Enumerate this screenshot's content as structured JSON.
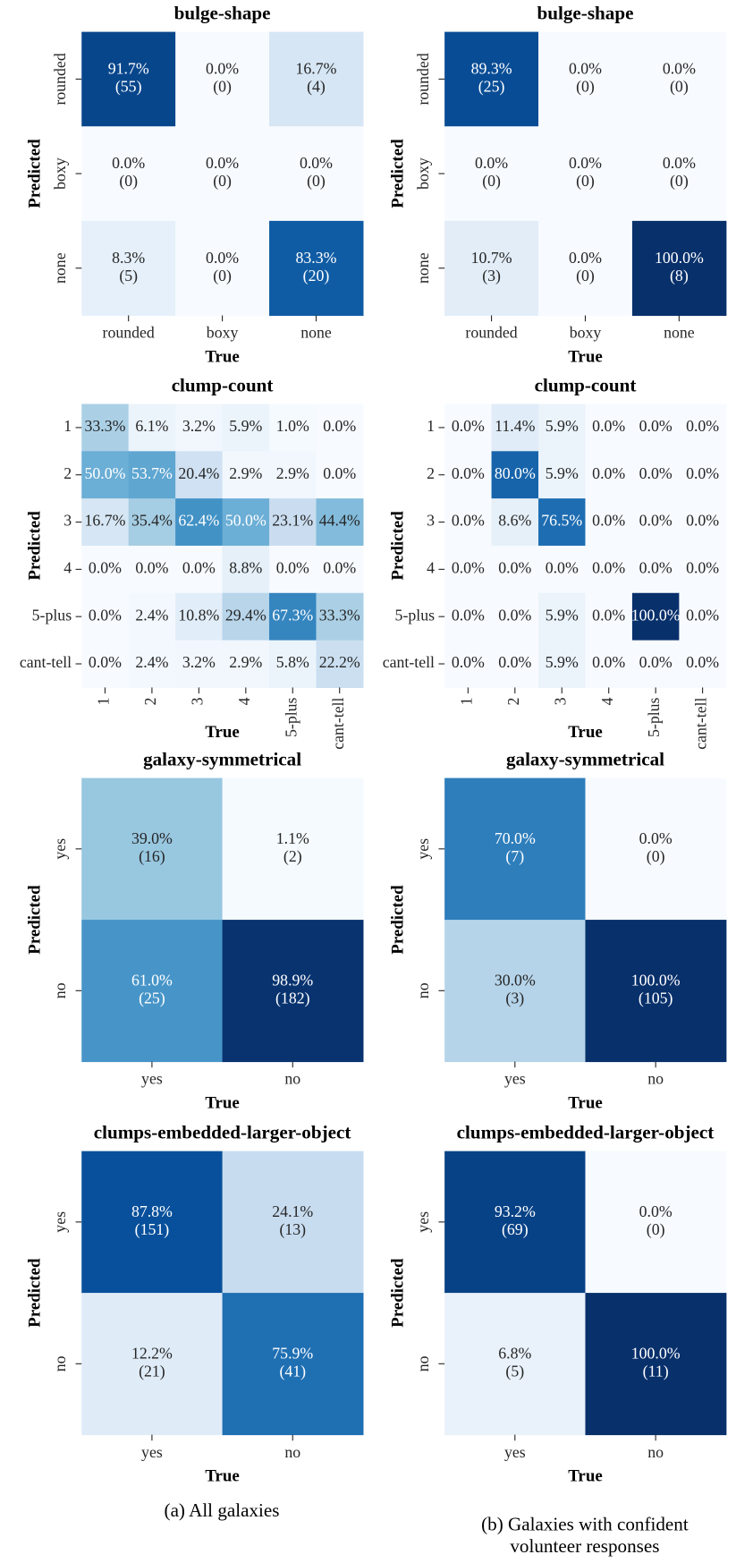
{
  "chart_data": [
    {
      "type": "heatmap",
      "title": "bulge-shape",
      "xlabel": "True",
      "ylabel": "Predicted",
      "x_categories": [
        "rounded",
        "boxy",
        "none"
      ],
      "y_categories": [
        "rounded",
        "boxy",
        "none"
      ],
      "values": [
        [
          91.7,
          0.0,
          16.7
        ],
        [
          0.0,
          0.0,
          0.0
        ],
        [
          8.3,
          0.0,
          83.3
        ]
      ],
      "value_labels": [
        [
          "91.7%",
          "0.0%",
          "16.7%"
        ],
        [
          "0.0%",
          "0.0%",
          "0.0%"
        ],
        [
          "8.3%",
          "0.0%",
          "83.3%"
        ]
      ],
      "count_labels": [
        [
          "(55)",
          "(0)",
          "(4)"
        ],
        [
          "(0)",
          "(0)",
          "(0)"
        ],
        [
          "(5)",
          "(0)",
          "(20)"
        ]
      ],
      "vlim": [
        0,
        100
      ],
      "colormap": [
        "#f7fbff",
        "#deebf7",
        "#c6dbef",
        "#9ecae1",
        "#6baed6",
        "#4292c6",
        "#2171b5",
        "#08519c",
        "#08306b"
      ]
    },
    {
      "type": "heatmap",
      "title": "bulge-shape",
      "xlabel": "True",
      "ylabel": "Predicted",
      "x_categories": [
        "rounded",
        "boxy",
        "none"
      ],
      "y_categories": [
        "rounded",
        "boxy",
        "none"
      ],
      "values": [
        [
          89.3,
          0.0,
          0.0
        ],
        [
          0.0,
          0.0,
          0.0
        ],
        [
          10.7,
          0.0,
          100.0
        ]
      ],
      "value_labels": [
        [
          "89.3%",
          "0.0%",
          "0.0%"
        ],
        [
          "0.0%",
          "0.0%",
          "0.0%"
        ],
        [
          "10.7%",
          "0.0%",
          "100.0%"
        ]
      ],
      "count_labels": [
        [
          "(25)",
          "(0)",
          "(0)"
        ],
        [
          "(0)",
          "(0)",
          "(0)"
        ],
        [
          "(3)",
          "(0)",
          "(8)"
        ]
      ],
      "vlim": [
        0,
        100
      ],
      "colormap": [
        "#f7fbff",
        "#deebf7",
        "#c6dbef",
        "#9ecae1",
        "#6baed6",
        "#4292c6",
        "#2171b5",
        "#08519c",
        "#08306b"
      ]
    },
    {
      "type": "heatmap",
      "title": "clump-count",
      "xlabel": "True",
      "ylabel": "Predicted",
      "x_categories": [
        "1",
        "2",
        "3",
        "4",
        "5-plus",
        "cant-tell"
      ],
      "y_categories": [
        "1",
        "2",
        "3",
        "4",
        "5-plus",
        "cant-tell"
      ],
      "values": [
        [
          33.3,
          6.1,
          3.2,
          5.9,
          1.0,
          0.0
        ],
        [
          50.0,
          53.7,
          20.4,
          2.9,
          2.9,
          0.0
        ],
        [
          16.7,
          35.4,
          62.4,
          50.0,
          23.1,
          44.4
        ],
        [
          0.0,
          0.0,
          0.0,
          8.8,
          0.0,
          0.0
        ],
        [
          0.0,
          2.4,
          10.8,
          29.4,
          67.3,
          33.3
        ],
        [
          0.0,
          2.4,
          3.2,
          2.9,
          5.8,
          22.2
        ]
      ],
      "value_labels": [
        [
          "33.3%",
          "6.1%",
          "3.2%",
          "5.9%",
          "1.0%",
          "0.0%"
        ],
        [
          "50.0%",
          "53.7%",
          "20.4%",
          "2.9%",
          "2.9%",
          "0.0%"
        ],
        [
          "16.7%",
          "35.4%",
          "62.4%",
          "50.0%",
          "23.1%",
          "44.4%"
        ],
        [
          "0.0%",
          "0.0%",
          "0.0%",
          "8.8%",
          "0.0%",
          "0.0%"
        ],
        [
          "0.0%",
          "2.4%",
          "10.8%",
          "29.4%",
          "67.3%",
          "33.3%"
        ],
        [
          "0.0%",
          "2.4%",
          "3.2%",
          "2.9%",
          "5.8%",
          "22.2%"
        ]
      ],
      "vlim": [
        0,
        100
      ],
      "colormap": [
        "#f7fbff",
        "#deebf7",
        "#c6dbef",
        "#9ecae1",
        "#6baed6",
        "#4292c6",
        "#2171b5",
        "#08519c",
        "#08306b"
      ]
    },
    {
      "type": "heatmap",
      "title": "clump-count",
      "xlabel": "True",
      "ylabel": "Predicted",
      "x_categories": [
        "1",
        "2",
        "3",
        "4",
        "5-plus",
        "cant-tell"
      ],
      "y_categories": [
        "1",
        "2",
        "3",
        "4",
        "5-plus",
        "cant-tell"
      ],
      "values": [
        [
          0.0,
          11.4,
          5.9,
          0.0,
          0.0,
          0.0
        ],
        [
          0.0,
          80.0,
          5.9,
          0.0,
          0.0,
          0.0
        ],
        [
          0.0,
          8.6,
          76.5,
          0.0,
          0.0,
          0.0
        ],
        [
          0.0,
          0.0,
          0.0,
          0.0,
          0.0,
          0.0
        ],
        [
          0.0,
          0.0,
          5.9,
          0.0,
          100.0,
          0.0
        ],
        [
          0.0,
          0.0,
          5.9,
          0.0,
          0.0,
          0.0
        ]
      ],
      "value_labels": [
        [
          "0.0%",
          "11.4%",
          "5.9%",
          "0.0%",
          "0.0%",
          "0.0%"
        ],
        [
          "0.0%",
          "80.0%",
          "5.9%",
          "0.0%",
          "0.0%",
          "0.0%"
        ],
        [
          "0.0%",
          "8.6%",
          "76.5%",
          "0.0%",
          "0.0%",
          "0.0%"
        ],
        [
          "0.0%",
          "0.0%",
          "0.0%",
          "0.0%",
          "0.0%",
          "0.0%"
        ],
        [
          "0.0%",
          "0.0%",
          "5.9%",
          "0.0%",
          "100.0%",
          "0.0%"
        ],
        [
          "0.0%",
          "0.0%",
          "5.9%",
          "0.0%",
          "0.0%",
          "0.0%"
        ]
      ],
      "vlim": [
        0,
        100
      ],
      "colormap": [
        "#f7fbff",
        "#deebf7",
        "#c6dbef",
        "#9ecae1",
        "#6baed6",
        "#4292c6",
        "#2171b5",
        "#08519c",
        "#08306b"
      ]
    },
    {
      "type": "heatmap",
      "title": "galaxy-symmetrical",
      "xlabel": "True",
      "ylabel": "Predicted",
      "x_categories": [
        "yes",
        "no"
      ],
      "y_categories": [
        "yes",
        "no"
      ],
      "values": [
        [
          39.0,
          1.1
        ],
        [
          61.0,
          98.9
        ]
      ],
      "value_labels": [
        [
          "39.0%",
          "1.1%"
        ],
        [
          "61.0%",
          "98.9%"
        ]
      ],
      "count_labels": [
        [
          "(16)",
          "(2)"
        ],
        [
          "(25)",
          "(182)"
        ]
      ],
      "vlim": [
        0,
        100
      ],
      "colormap": [
        "#f7fbff",
        "#deebf7",
        "#c6dbef",
        "#9ecae1",
        "#6baed6",
        "#4292c6",
        "#2171b5",
        "#08519c",
        "#08306b"
      ]
    },
    {
      "type": "heatmap",
      "title": "galaxy-symmetrical",
      "xlabel": "True",
      "ylabel": "Predicted",
      "x_categories": [
        "yes",
        "no"
      ],
      "y_categories": [
        "yes",
        "no"
      ],
      "values": [
        [
          70.0,
          0.0
        ],
        [
          30.0,
          100.0
        ]
      ],
      "value_labels": [
        [
          "70.0%",
          "0.0%"
        ],
        [
          "30.0%",
          "100.0%"
        ]
      ],
      "count_labels": [
        [
          "(7)",
          "(0)"
        ],
        [
          "(3)",
          "(105)"
        ]
      ],
      "vlim": [
        0,
        100
      ],
      "colormap": [
        "#f7fbff",
        "#deebf7",
        "#c6dbef",
        "#9ecae1",
        "#6baed6",
        "#4292c6",
        "#2171b5",
        "#08519c",
        "#08306b"
      ]
    },
    {
      "type": "heatmap",
      "title": "clumps-embedded-larger-object",
      "xlabel": "True",
      "ylabel": "Predicted",
      "x_categories": [
        "yes",
        "no"
      ],
      "y_categories": [
        "yes",
        "no"
      ],
      "values": [
        [
          87.8,
          24.1
        ],
        [
          12.2,
          75.9
        ]
      ],
      "value_labels": [
        [
          "87.8%",
          "24.1%"
        ],
        [
          "12.2%",
          "75.9%"
        ]
      ],
      "count_labels": [
        [
          "(151)",
          "(13)"
        ],
        [
          "(21)",
          "(41)"
        ]
      ],
      "vlim": [
        0,
        100
      ],
      "colormap": [
        "#f7fbff",
        "#deebf7",
        "#c6dbef",
        "#9ecae1",
        "#6baed6",
        "#4292c6",
        "#2171b5",
        "#08519c",
        "#08306b"
      ]
    },
    {
      "type": "heatmap",
      "title": "clumps-embedded-larger-object",
      "xlabel": "True",
      "ylabel": "Predicted",
      "x_categories": [
        "yes",
        "no"
      ],
      "y_categories": [
        "yes",
        "no"
      ],
      "values": [
        [
          93.2,
          0.0
        ],
        [
          6.8,
          100.0
        ]
      ],
      "value_labels": [
        [
          "93.2%",
          "0.0%"
        ],
        [
          "6.8%",
          "100.0%"
        ]
      ],
      "count_labels": [
        [
          "(69)",
          "(0)"
        ],
        [
          "(5)",
          "(11)"
        ]
      ],
      "vlim": [
        0,
        100
      ],
      "colormap": [
        "#f7fbff",
        "#deebf7",
        "#c6dbef",
        "#9ecae1",
        "#6baed6",
        "#4292c6",
        "#2171b5",
        "#08519c",
        "#08306b"
      ]
    }
  ],
  "captions": {
    "a": "(a) All galaxies",
    "b": [
      "(b) Galaxies with confident",
      "volunteer responses"
    ]
  }
}
